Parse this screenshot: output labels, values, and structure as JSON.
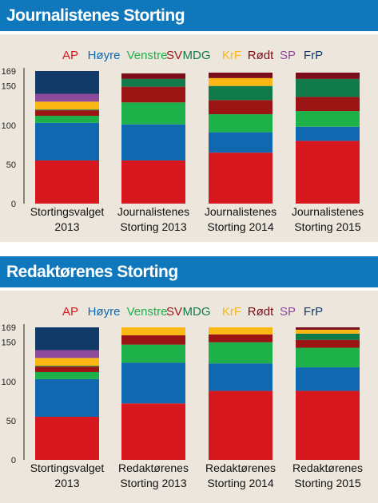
{
  "colors": {
    "AP": "#d7191f",
    "Høyre": "#1068b0",
    "Venstre": "#1eb14a",
    "SV": "#9b1515",
    "MDG": "#117a4a",
    "KrF": "#fbb714",
    "Rødt": "#7b0c1a",
    "SP": "#8d4a9a",
    "FrP": "#123a68"
  },
  "chart_data": [
    {
      "type": "bar",
      "stacked": true,
      "title": "Journalistenes Storting",
      "legend": [
        "AP",
        "Høyre",
        "Venstre",
        "SV",
        "MDG",
        "KrF",
        "Rødt",
        "SP",
        "FrP"
      ],
      "y_ticks": [
        0,
        50,
        100,
        150,
        169
      ],
      "ylim": [
        0,
        169
      ],
      "categories": [
        "Stortingsvalget 2013",
        "Journalistenes Storting 2013",
        "Journalistenes Storting 2014",
        "Journalistenes Storting 2015"
      ],
      "category_lines": [
        [
          "Stortingsvalget",
          "2013"
        ],
        [
          "Journalistenes",
          "Storting 2013"
        ],
        [
          "Journalistenes",
          "Storting 2014"
        ],
        [
          "Journalistenes",
          "Storting 2015"
        ]
      ],
      "series": [
        {
          "name": "AP",
          "values": [
            55,
            55,
            65,
            80
          ]
        },
        {
          "name": "Høyre",
          "values": [
            48,
            46,
            26,
            18
          ]
        },
        {
          "name": "Venstre",
          "values": [
            9,
            28,
            23,
            20
          ]
        },
        {
          "name": "SV",
          "values": [
            7,
            20,
            18,
            18
          ]
        },
        {
          "name": "MDG",
          "values": [
            1,
            10,
            18,
            23
          ]
        },
        {
          "name": "KrF",
          "values": [
            10,
            0,
            10,
            0
          ]
        },
        {
          "name": "Rødt",
          "values": [
            0,
            7,
            7,
            8
          ]
        },
        {
          "name": "SP",
          "values": [
            10,
            0,
            0,
            0
          ]
        },
        {
          "name": "FrP",
          "values": [
            29,
            0,
            0,
            0
          ]
        }
      ]
    },
    {
      "type": "bar",
      "stacked": true,
      "title": "Redaktørenes Storting",
      "legend": [
        "AP",
        "Høyre",
        "Venstre",
        "SV",
        "MDG",
        "KrF",
        "Rødt",
        "SP",
        "FrP"
      ],
      "y_ticks": [
        0,
        50,
        100,
        150,
        169
      ],
      "ylim": [
        0,
        169
      ],
      "categories": [
        "Stortingsvalget 2013",
        "Redaktørenes Storting 2013",
        "Redaktørenes Storting 2014",
        "Redaktørenes Storting 2015"
      ],
      "category_lines": [
        [
          "Stortingsvalget",
          "2013"
        ],
        [
          "Redaktørenes",
          "Storting 2013"
        ],
        [
          "Redaktørenes",
          "Storting 2014"
        ],
        [
          "Redaktørenes",
          "Storting 2015"
        ]
      ],
      "series": [
        {
          "name": "AP",
          "values": [
            55,
            72,
            88,
            88
          ]
        },
        {
          "name": "Høyre",
          "values": [
            48,
            52,
            35,
            30
          ]
        },
        {
          "name": "Venstre",
          "values": [
            9,
            23,
            27,
            25
          ]
        },
        {
          "name": "SV",
          "values": [
            7,
            12,
            10,
            10
          ]
        },
        {
          "name": "MDG",
          "values": [
            1,
            0,
            0,
            8
          ]
        },
        {
          "name": "KrF",
          "values": [
            10,
            10,
            9,
            5
          ]
        },
        {
          "name": "Rødt",
          "values": [
            0,
            0,
            0,
            3
          ]
        },
        {
          "name": "SP",
          "values": [
            10,
            0,
            0,
            0
          ]
        },
        {
          "name": "FrP",
          "values": [
            29,
            0,
            0,
            0
          ]
        }
      ]
    }
  ]
}
